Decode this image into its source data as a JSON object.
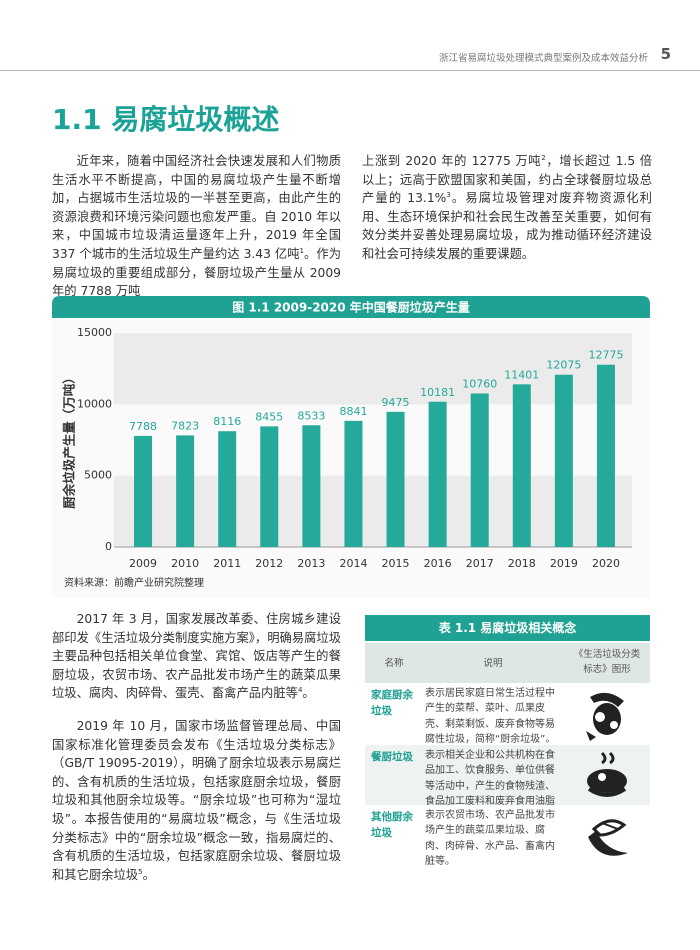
{
  "header": {
    "running_title": "浙江省易腐垃圾处理模式典型案例及成本效益分析",
    "page_number": "5"
  },
  "section_title": "1.1 易腐垃圾概述",
  "intro": {
    "left": [
      "近年来，随着中国经济社会快速发展和人们物质生活水平不断提高，中国的易腐垃圾产生量不断增加，占据城市生活垃圾的一半甚至更高，由此产生的资源浪费和环境污染问题也愈发严重。自 2010 年以来，中国城市垃圾清运量逐年上升，2019 年全国 337 个城市的生活垃圾生产量约达 3.43 亿吨",
      "1",
      "。作为易腐垃圾的重要组成部分，餐厨垃圾产生量从 2009 年的 7788 万吨"
    ],
    "right": [
      "上涨到 2020 年的 12775 万吨",
      "2",
      "，增长超过 1.5 倍以上；远高于欧盟国家和美国，约占全球餐厨垃圾总产量的 13.1%",
      "3",
      "。易腐垃圾管理对废弃物资源化利用、生态环境保护和社会民生改善至关重要，如何有效分类并妥善处理易腐垃圾，成为推动循环经济建设和社会可持续发展的重要课题。"
    ]
  },
  "chart_data": {
    "type": "bar",
    "title": "图 1.1 2009-2020 年中国餐厨垃圾产生量",
    "y_label": "厨余垃圾产生量（万吨）",
    "categories": [
      "2009",
      "2010",
      "2011",
      "2012",
      "2013",
      "2014",
      "2015",
      "2016",
      "2017",
      "2018",
      "2019",
      "2020"
    ],
    "values": [
      7788,
      7823,
      8116,
      8455,
      8533,
      8841,
      9475,
      10181,
      10760,
      11401,
      12075,
      12775
    ],
    "color": "#25a99b",
    "ylim": [
      0,
      15000
    ],
    "yticks": [
      0,
      5000,
      10000,
      15000
    ],
    "grid": true,
    "source": "资料来源：前瞻产业研究院整理"
  },
  "body": [
    [
      "2017 年 3 月，国家发展改革委、住房城乡建设部印发《生活垃圾分类制度实施方案》，明确易腐垃圾主要品种包括相关单位食堂、宾馆、饭店等产生的餐厨垃圾，农贸市场、农产品批发市场产生的蔬菜瓜果垃圾、腐肉、肉碎骨、蛋壳、畜禽产品内脏等",
      "4",
      "。"
    ],
    [
      "2019 年 10 月，国家市场监督管理总局、中国国家标准化管理委员会发布《生活垃圾分类标志》（GB/T 19095-2019），明确了厨余垃圾表示易腐烂的、含有机质的生活垃圾，包括家庭厨余垃圾，餐厨垃圾和其他厨余垃圾等。“厨余垃圾”也可称为“湿垃圾”。本报告使用的“易腐垃圾”概念，与《生活垃圾分类标志》中的“厨余垃圾”概念一致，指易腐烂的、含有机质的生活垃圾，包括家庭厨余垃圾、餐厨垃圾和其它厨余垃圾",
      "5",
      "。"
    ]
  ],
  "table": {
    "title": "表 1.1 易腐垃圾相关概念",
    "headers": [
      "名称",
      "说明",
      "《生活垃圾分类标志》图形"
    ],
    "rows": [
      [
        "家庭厨余垃圾",
        "表示居民家庭日常生活过程中产生的菜帮、菜叶、瓜果皮壳、剩菜剩饭、废弃食物等易腐性垃圾，简称“厨余垃圾”。"
      ],
      [
        "餐厨垃圾",
        "表示相关企业和公共机构在食品加工、饮食服务、单位供餐等活动中，产生的食物残渣、食品加工废料和废弃食用油脂等。"
      ],
      [
        "其他厨余垃圾",
        "表示农贸市场、农产品批发市场产生的蔬菜瓜果垃圾、腐肉、肉碎骨、水产品、畜禽内脏等。"
      ]
    ]
  }
}
